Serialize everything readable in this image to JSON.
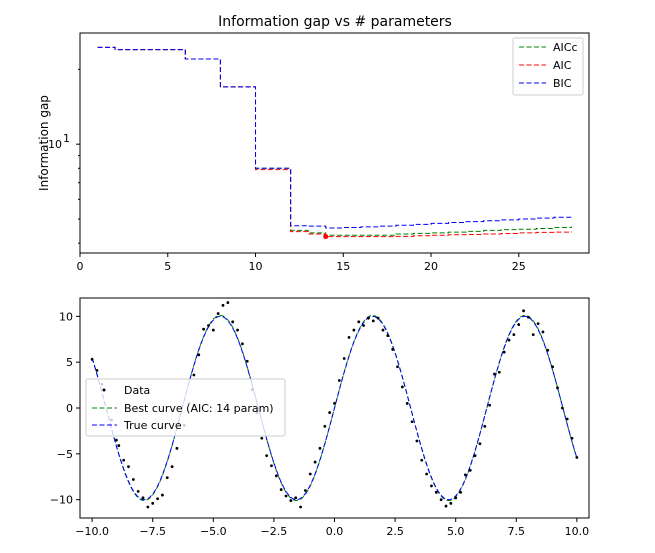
{
  "chart_data": [
    {
      "type": "line",
      "title": "Information gap vs # parameters",
      "xlabel": "",
      "ylabel": "Information gap",
      "xlim": [
        0,
        29
      ],
      "ylim": [
        3.65,
        28
      ],
      "yscale": "log",
      "xticks": [
        0,
        5,
        10,
        15,
        20,
        25
      ],
      "xtick_labels": [
        "0",
        "5",
        "10",
        "15",
        "20",
        "25"
      ],
      "yticks": [
        10
      ],
      "ytick_labels": [
        "10"
      ],
      "ytick_superscript": "1",
      "legend": {
        "placement": "top-right",
        "entries": [
          "AICc",
          "AIC",
          "BIC"
        ]
      },
      "x": [
        1,
        2,
        3,
        4,
        5,
        6,
        7,
        8,
        9,
        10,
        11,
        12,
        13,
        14,
        15,
        16,
        17,
        18,
        19,
        20,
        21,
        22,
        23,
        24,
        25,
        26,
        27,
        28
      ],
      "series": [
        {
          "name": "AICc",
          "color": "#008000",
          "style": "dashed",
          "values": [
            24.5,
            24.0,
            24.0,
            24.0,
            24.0,
            22.0,
            22.0,
            17.0,
            17.0,
            8.0,
            8.0,
            4.5,
            4.4,
            4.3,
            4.3,
            4.3,
            4.3,
            4.35,
            4.38,
            4.4,
            4.43,
            4.46,
            4.5,
            4.53,
            4.55,
            4.58,
            4.62,
            4.66
          ]
        },
        {
          "name": "AIC",
          "color": "#ff0000",
          "style": "dashed",
          "values": [
            24.5,
            24.0,
            24.0,
            24.0,
            24.0,
            22.0,
            22.0,
            17.0,
            17.0,
            7.9,
            7.9,
            4.45,
            4.35,
            4.25,
            4.25,
            4.25,
            4.25,
            4.26,
            4.28,
            4.3,
            4.32,
            4.33,
            4.35,
            4.37,
            4.4,
            4.42,
            4.43,
            4.45
          ]
        },
        {
          "name": "BIC",
          "color": "#0000ff",
          "style": "dashed",
          "values": [
            24.5,
            24.0,
            24.0,
            24.0,
            24.0,
            22.0,
            22.0,
            17.0,
            17.0,
            8.0,
            8.0,
            4.7,
            4.68,
            4.6,
            4.62,
            4.65,
            4.68,
            4.72,
            4.76,
            4.8,
            4.84,
            4.88,
            4.92,
            4.96,
            5.0,
            5.04,
            5.08,
            5.12
          ]
        }
      ],
      "marker": {
        "x": 14,
        "y": 4.25,
        "color": "#ff0000"
      }
    },
    {
      "type": "scatter",
      "title": "",
      "xlabel": "",
      "ylabel": "",
      "xlim": [
        -10.5,
        10.5
      ],
      "ylim": [
        -12,
        12
      ],
      "xticks": [
        -10.0,
        -7.5,
        -5.0,
        -2.5,
        0.0,
        2.5,
        5.0,
        7.5,
        10.0
      ],
      "xtick_labels": [
        "−10.0",
        "−7.5",
        "−5.0",
        "−2.5",
        "0.0",
        "2.5",
        "5.0",
        "7.5",
        "10.0"
      ],
      "yticks": [
        -10,
        -5,
        0,
        5,
        10
      ],
      "ytick_labels": [
        "−10",
        "−5",
        "0",
        "5",
        "10"
      ],
      "legend": {
        "placement": "center-left",
        "entries": [
          "Data",
          "Best curve (AIC: 14 param)",
          "True curve"
        ]
      },
      "series": [
        {
          "name": "Data",
          "color": "#000000",
          "style": "points",
          "points": [
            [
              -10.0,
              5.3
            ],
            [
              -9.8,
              4.1
            ],
            [
              -9.6,
              2.6
            ],
            [
              -9.2,
              -1.3
            ],
            [
              -9.0,
              -3.5
            ],
            [
              -8.9,
              -4.1
            ],
            [
              -8.7,
              -5.7
            ],
            [
              -8.5,
              -6.4
            ],
            [
              -8.3,
              -7.8
            ],
            [
              -8.1,
              -9.1
            ],
            [
              -7.9,
              -9.8
            ],
            [
              -7.7,
              -10.8
            ],
            [
              -7.5,
              -10.4
            ],
            [
              -7.3,
              -9.9
            ],
            [
              -7.1,
              -9.5
            ],
            [
              -6.9,
              -7.6
            ],
            [
              -6.7,
              -6.4
            ],
            [
              -6.5,
              -4.4
            ],
            [
              -6.2,
              -1.9
            ],
            [
              -6.0,
              0.5
            ],
            [
              -5.8,
              3.6
            ],
            [
              -5.6,
              5.8
            ],
            [
              -5.4,
              8.6
            ],
            [
              -5.2,
              9.0
            ],
            [
              -5.0,
              8.5
            ],
            [
              -4.8,
              10.3
            ],
            [
              -4.6,
              11.2
            ],
            [
              -4.4,
              11.5
            ],
            [
              -4.2,
              9.4
            ],
            [
              -4.0,
              8.5
            ],
            [
              -3.8,
              7.0
            ],
            [
              -3.6,
              5.1
            ],
            [
              -3.4,
              2.0
            ],
            [
              -3.2,
              -0.5
            ],
            [
              -3.0,
              -3.3
            ],
            [
              -2.8,
              -5.2
            ],
            [
              -2.6,
              -6.3
            ],
            [
              -2.4,
              -7.4
            ],
            [
              -2.2,
              -8.9
            ],
            [
              -2.0,
              -9.6
            ],
            [
              -1.8,
              -10.1
            ],
            [
              -1.6,
              -9.8
            ],
            [
              -1.4,
              -10.8
            ],
            [
              -1.2,
              -9.0
            ],
            [
              -1.0,
              -7.2
            ],
            [
              -0.8,
              -5.9
            ],
            [
              -0.6,
              -4.4
            ],
            [
              -0.4,
              -2.0
            ],
            [
              -0.2,
              -0.5
            ],
            [
              0.0,
              0.5
            ],
            [
              0.2,
              3.0
            ],
            [
              0.4,
              5.4
            ],
            [
              0.6,
              7.7
            ],
            [
              0.8,
              8.5
            ],
            [
              1.0,
              9.4
            ],
            [
              1.2,
              9.0
            ],
            [
              1.4,
              9.8
            ],
            [
              1.6,
              9.5
            ],
            [
              1.8,
              9.8
            ],
            [
              2.0,
              8.5
            ],
            [
              2.2,
              7.9
            ],
            [
              2.4,
              6.4
            ],
            [
              2.6,
              4.5
            ],
            [
              2.8,
              2.3
            ],
            [
              3.0,
              0.5
            ],
            [
              3.2,
              -1.5
            ],
            [
              3.4,
              -3.6
            ],
            [
              3.6,
              -5.7
            ],
            [
              3.8,
              -7.2
            ],
            [
              4.0,
              -8.5
            ],
            [
              4.2,
              -9.2
            ],
            [
              4.4,
              -10.0
            ],
            [
              4.6,
              -10.7
            ],
            [
              4.8,
              -10.4
            ],
            [
              5.0,
              -9.8
            ],
            [
              5.2,
              -9.2
            ],
            [
              5.4,
              -7.3
            ],
            [
              5.6,
              -6.8
            ],
            [
              5.8,
              -5.2
            ],
            [
              6.0,
              -3.9
            ],
            [
              6.2,
              -2.0
            ],
            [
              6.4,
              0.3
            ],
            [
              6.6,
              3.7
            ],
            [
              6.8,
              3.9
            ],
            [
              7.0,
              6.1
            ],
            [
              7.2,
              7.4
            ],
            [
              7.4,
              8.0
            ],
            [
              7.6,
              9.1
            ],
            [
              7.8,
              10.6
            ],
            [
              8.0,
              9.9
            ],
            [
              8.2,
              8.0
            ],
            [
              8.4,
              9.2
            ],
            [
              8.6,
              8.3
            ],
            [
              8.8,
              6.3
            ],
            [
              9.0,
              4.5
            ],
            [
              9.2,
              2.2
            ],
            [
              9.4,
              0.0
            ],
            [
              9.6,
              -1.2
            ],
            [
              9.8,
              -3.3
            ],
            [
              10.0,
              -5.4
            ]
          ]
        },
        {
          "name": "Best curve (AIC: 14 param)",
          "color": "#008000",
          "style": "dashed",
          "params": {
            "A": 10.1,
            "k": 1,
            "phase": 0.0
          }
        },
        {
          "name": "True curve",
          "color": "#0000ff",
          "style": "dashed",
          "params": {
            "A": 10.0,
            "k": 1,
            "phase": 0.0
          }
        }
      ]
    }
  ]
}
